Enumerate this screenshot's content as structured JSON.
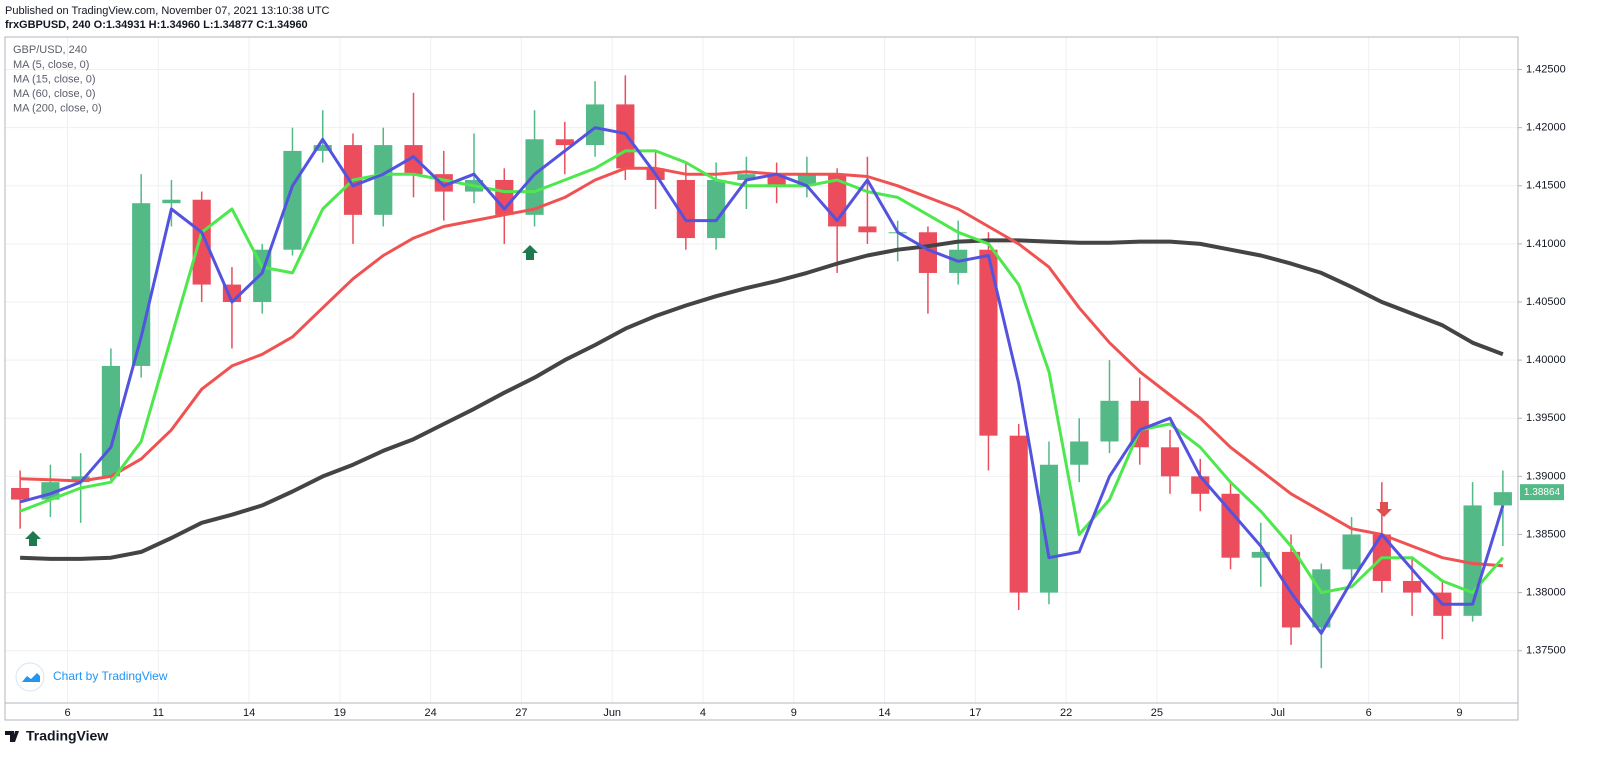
{
  "header": {
    "published": "Published on TradingView.com, November 07, 2021 13:10:38 UTC",
    "symbol_line": "frxGBPUSD, 240 O:1.34931 H:1.34960 L:1.34877 C:1.34960"
  },
  "chart_data": {
    "type": "candlestick",
    "title": "GBP/USD, 240",
    "categories": [
      null,
      null,
      "6",
      null,
      null,
      "11",
      null,
      null,
      "14",
      null,
      null,
      "19",
      null,
      null,
      "24",
      null,
      null,
      "27",
      null,
      null,
      "Jun",
      null,
      null,
      "4",
      null,
      null,
      "9",
      null,
      null,
      "14",
      null,
      null,
      "17",
      null,
      null,
      "22",
      null,
      null,
      "25",
      null,
      null,
      null,
      "Jul",
      null,
      null,
      "6",
      null,
      null,
      "9",
      null
    ],
    "open": [
      1.389,
      1.388,
      1.3895,
      1.39,
      1.3995,
      1.4135,
      1.4138,
      1.4065,
      1.405,
      1.4095,
      1.418,
      1.4185,
      1.4125,
      1.4185,
      1.416,
      1.4145,
      1.4155,
      1.4125,
      1.419,
      1.4185,
      1.422,
      1.4165,
      1.4155,
      1.4105,
      1.4155,
      1.416,
      1.415,
      1.416,
      1.4115,
      1.411,
      1.411,
      1.4075,
      1.4095,
      1.3935,
      1.38,
      1.391,
      1.393,
      1.3965,
      1.3925,
      1.39,
      1.3885,
      1.383,
      1.3835,
      1.377,
      1.382,
      1.385,
      1.381,
      1.38,
      1.378,
      1.3875
    ],
    "high": [
      1.3905,
      1.391,
      1.392,
      1.401,
      1.416,
      1.4155,
      1.4145,
      1.408,
      1.41,
      1.42,
      1.4215,
      1.4195,
      1.42,
      1.423,
      1.418,
      1.4195,
      1.4165,
      1.4215,
      1.4205,
      1.424,
      1.4245,
      1.418,
      1.417,
      1.417,
      1.4175,
      1.417,
      1.4175,
      1.4165,
      1.4175,
      1.412,
      1.4115,
      1.412,
      1.411,
      1.3945,
      1.393,
      1.395,
      1.4,
      1.3985,
      1.394,
      1.3915,
      1.3895,
      1.386,
      1.385,
      1.3825,
      1.3865,
      1.3895,
      1.383,
      1.381,
      1.3895,
      1.3905
    ],
    "low": [
      1.3855,
      1.3865,
      1.386,
      1.3895,
      1.3985,
      1.4115,
      1.405,
      1.401,
      1.404,
      1.409,
      1.417,
      1.41,
      1.4115,
      1.414,
      1.412,
      1.4135,
      1.41,
      1.4115,
      1.416,
      1.4175,
      1.4155,
      1.413,
      1.4095,
      1.4095,
      1.413,
      1.4135,
      1.414,
      1.4075,
      1.41,
      1.4085,
      1.404,
      1.4065,
      1.3905,
      1.3785,
      1.379,
      1.3895,
      1.392,
      1.391,
      1.3885,
      1.387,
      1.382,
      1.3805,
      1.3755,
      1.3735,
      1.381,
      1.38,
      1.378,
      1.376,
      1.3775,
      1.384
    ],
    "close": [
      1.388,
      1.3895,
      1.39,
      1.3995,
      1.4135,
      1.4138,
      1.4065,
      1.405,
      1.4095,
      1.418,
      1.4185,
      1.4125,
      1.4185,
      1.416,
      1.4145,
      1.4155,
      1.4125,
      1.419,
      1.4185,
      1.422,
      1.4165,
      1.4155,
      1.4105,
      1.4155,
      1.416,
      1.415,
      1.416,
      1.4115,
      1.411,
      1.411,
      1.4075,
      1.4095,
      1.3935,
      1.38,
      1.391,
      1.393,
      1.3965,
      1.3925,
      1.39,
      1.3885,
      1.383,
      1.3835,
      1.377,
      1.382,
      1.385,
      1.381,
      1.38,
      1.378,
      1.3875,
      1.38864
    ],
    "up_color": "#53b987",
    "down_color": "#eb4d5c",
    "series": [
      {
        "name": "MA (5, close, 0)",
        "color": "#5353e0",
        "values": [
          1.3878,
          1.3885,
          1.3895,
          1.3925,
          1.402,
          1.413,
          1.411,
          1.405,
          1.4075,
          1.415,
          1.419,
          1.415,
          1.416,
          1.4175,
          1.415,
          1.416,
          1.413,
          1.416,
          1.418,
          1.42,
          1.4195,
          1.416,
          1.412,
          1.412,
          1.4155,
          1.416,
          1.415,
          1.412,
          1.4155,
          1.411,
          1.4095,
          1.4085,
          1.409,
          1.398,
          1.383,
          1.3835,
          1.39,
          1.394,
          1.395,
          1.39,
          1.387,
          1.384,
          1.38,
          1.3765,
          1.381,
          1.385,
          1.382,
          1.379,
          1.379,
          1.3875
        ]
      },
      {
        "name": "MA (15, close, 0)",
        "color": "#4ee84e",
        "values": [
          1.387,
          1.388,
          1.389,
          1.3895,
          1.393,
          1.402,
          1.411,
          1.413,
          1.408,
          1.4075,
          1.413,
          1.4155,
          1.416,
          1.416,
          1.4155,
          1.415,
          1.4145,
          1.4145,
          1.4155,
          1.4165,
          1.418,
          1.418,
          1.417,
          1.4155,
          1.415,
          1.415,
          1.415,
          1.4155,
          1.4145,
          1.414,
          1.4125,
          1.411,
          1.41,
          1.4065,
          1.399,
          1.385,
          1.388,
          1.394,
          1.3945,
          1.3925,
          1.3895,
          1.387,
          1.384,
          1.38,
          1.3805,
          1.383,
          1.383,
          1.381,
          1.38,
          1.383
        ]
      },
      {
        "name": "MA (60, close, 0)",
        "color": "#f05252",
        "values": [
          1.3898,
          1.3897,
          1.3896,
          1.39,
          1.3915,
          1.394,
          1.3975,
          1.3995,
          1.4005,
          1.402,
          1.4045,
          1.407,
          1.409,
          1.4105,
          1.4115,
          1.412,
          1.4125,
          1.413,
          1.414,
          1.4155,
          1.4165,
          1.4165,
          1.416,
          1.416,
          1.4162,
          1.416,
          1.416,
          1.416,
          1.4158,
          1.415,
          1.414,
          1.413,
          1.4115,
          1.41,
          1.408,
          1.4045,
          1.4015,
          1.399,
          1.397,
          1.395,
          1.3925,
          1.3905,
          1.3885,
          1.387,
          1.3855,
          1.385,
          1.384,
          1.383,
          1.3825,
          1.3823
        ]
      },
      {
        "name": "MA (200, close, 0)",
        "color": "#444444",
        "values": [
          1.383,
          1.3829,
          1.3829,
          1.383,
          1.3835,
          1.3847,
          1.386,
          1.3867,
          1.3875,
          1.3887,
          1.39,
          1.391,
          1.3922,
          1.3932,
          1.3945,
          1.3958,
          1.3972,
          1.3985,
          1.4,
          1.4013,
          1.4027,
          1.4038,
          1.4047,
          1.4055,
          1.4062,
          1.4068,
          1.4075,
          1.4083,
          1.409,
          1.4095,
          1.4098,
          1.4102,
          1.4103,
          1.4103,
          1.4102,
          1.4101,
          1.4101,
          1.4102,
          1.4102,
          1.41,
          1.4095,
          1.409,
          1.4083,
          1.4075,
          1.4063,
          1.405,
          1.404,
          1.403,
          1.4015,
          1.4005
        ]
      }
    ],
    "ylim": [
      1.3705,
      1.4278
    ],
    "yticks": [
      {
        "value": 1.375,
        "label": "1.37500"
      },
      {
        "value": 1.38,
        "label": "1.38000"
      },
      {
        "value": 1.385,
        "label": "1.38500"
      },
      {
        "value": 1.39,
        "label": "1.39000"
      },
      {
        "value": 1.395,
        "label": "1.39500"
      },
      {
        "value": 1.4,
        "label": "1.40000"
      },
      {
        "value": 1.405,
        "label": "1.40500"
      },
      {
        "value": 1.41,
        "label": "1.41000"
      },
      {
        "value": 1.415,
        "label": "1.41500"
      },
      {
        "value": 1.42,
        "label": "1.42000"
      },
      {
        "value": 1.425,
        "label": "1.42500"
      }
    ],
    "last_price": 1.38864,
    "last_price_color": "#53b987",
    "grid": true
  },
  "watermark": "Chart by TradingView",
  "footer": "TradingView"
}
